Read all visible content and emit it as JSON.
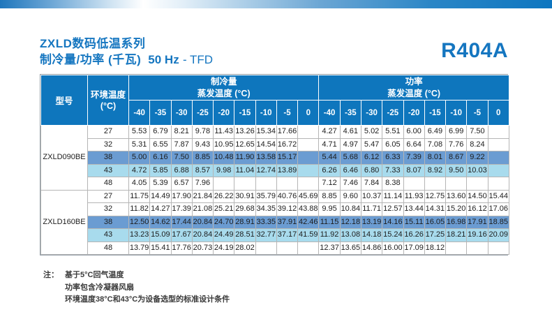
{
  "theme": {
    "accent": "#1576c0",
    "header_bg": "#0e76bd",
    "highlight_mid": "#6b9cd2",
    "highlight_light": "#a8dbed"
  },
  "header": {
    "title_line1": "ZXLD数码低温系列",
    "title_line2": "制冷量/功率 (千瓦)",
    "frequency": "50 Hz",
    "suffix": "- TFD",
    "refrigerant": "R404A"
  },
  "table": {
    "col_model": "型号",
    "col_ambient_line1": "环境温度",
    "col_ambient_line2": "(°C)",
    "group_cooling_line1": "制冷量",
    "group_cooling_line2": "蒸发温度 (°C)",
    "group_power_line1": "功率",
    "group_power_line2": "蒸发温度 (°C)",
    "evap_temps": [
      "-40",
      "-35",
      "-30",
      "-25",
      "-20",
      "-15",
      "-10",
      "-5",
      "0"
    ],
    "models": [
      {
        "name": "ZXLD090BE",
        "rows": [
          {
            "ambient": "27",
            "highlight": null,
            "cooling": [
              "5.53",
              "6.79",
              "8.21",
              "9.78",
              "11.43",
              "13.26",
              "15.34",
              "17.66",
              null
            ],
            "power": [
              "4.27",
              "4.61",
              "5.02",
              "5.51",
              "6.00",
              "6.49",
              "6.99",
              "7.50",
              null
            ]
          },
          {
            "ambient": "32",
            "highlight": null,
            "cooling": [
              "5.31",
              "6.55",
              "7.87",
              "9.43",
              "10.95",
              "12.65",
              "14.54",
              "16.72",
              null
            ],
            "power": [
              "4.71",
              "4.97",
              "5.47",
              "6.05",
              "6.64",
              "7.08",
              "7.76",
              "8.24",
              null
            ]
          },
          {
            "ambient": "38",
            "highlight": "mid",
            "cooling": [
              "5.00",
              "6.16",
              "7.50",
              "8.85",
              "10.48",
              "11.90",
              "13.58",
              "15.17",
              null
            ],
            "power": [
              "5.44",
              "5.68",
              "6.12",
              "6.33",
              "7.39",
              "8.01",
              "8.67",
              "9.22",
              null
            ]
          },
          {
            "ambient": "43",
            "highlight": "light",
            "cooling": [
              "4.72",
              "5.85",
              "6.88",
              "8.57",
              "9.98",
              "11.04",
              "12.74",
              "13.89",
              null
            ],
            "power": [
              "6.26",
              "6.46",
              "6.80",
              "7.33",
              "8.07",
              "8.92",
              "9.50",
              "10.03",
              null
            ]
          },
          {
            "ambient": "48",
            "highlight": null,
            "cooling": [
              "4.05",
              "5.39",
              "6.57",
              "7.96",
              null,
              null,
              null,
              null,
              null
            ],
            "power": [
              "7.12",
              "7.46",
              "7.84",
              "8.38",
              null,
              null,
              null,
              null,
              null
            ]
          }
        ]
      },
      {
        "name": "ZXLD160BE",
        "rows": [
          {
            "ambient": "27",
            "highlight": null,
            "cooling": [
              "11.75",
              "14.49",
              "17.90",
              "21.84",
              "26.22",
              "30.91",
              "35.79",
              "40.76",
              "45.69"
            ],
            "power": [
              "8.85",
              "9.60",
              "10.37",
              "11.14",
              "11.93",
              "12.75",
              "13.60",
              "14.50",
              "15.44"
            ]
          },
          {
            "ambient": "32",
            "highlight": null,
            "cooling": [
              "11.82",
              "14.27",
              "17.39",
              "21.08",
              "25.21",
              "29.68",
              "34.35",
              "39.12",
              "43.88"
            ],
            "power": [
              "9.95",
              "10.84",
              "11.71",
              "12.57",
              "13.44",
              "14.31",
              "15.20",
              "16.12",
              "17.06"
            ]
          },
          {
            "ambient": "38",
            "highlight": "mid",
            "cooling": [
              "12.50",
              "14.62",
              "17.44",
              "20.84",
              "24.70",
              "28.91",
              "33.35",
              "37.91",
              "42.46"
            ],
            "power": [
              "11.15",
              "12.18",
              "13.19",
              "14.16",
              "15.11",
              "16.05",
              "16.98",
              "17.91",
              "18.85"
            ]
          },
          {
            "ambient": "43",
            "highlight": "light",
            "cooling": [
              "13.23",
              "15.09",
              "17.67",
              "20.84",
              "24.49",
              "28.51",
              "32.77",
              "37.17",
              "41.59"
            ],
            "power": [
              "11.92",
              "13.08",
              "14.18",
              "15.24",
              "16.26",
              "17.25",
              "18.21",
              "19.16",
              "20.09"
            ]
          },
          {
            "ambient": "48",
            "highlight": null,
            "cooling": [
              "13.79",
              "15.41",
              "17.76",
              "20.73",
              "24.19",
              "28.02",
              null,
              null,
              null
            ],
            "power": [
              "12.37",
              "13.65",
              "14.86",
              "16.00",
              "17.09",
              "18.12",
              null,
              null,
              null
            ]
          }
        ]
      }
    ]
  },
  "notes": {
    "label": "注：",
    "lines": [
      "基于5°C回气温度",
      "功率包含冷凝器风扇",
      "环境温度38°C和43°C为设备选型的标准设计条件"
    ]
  }
}
